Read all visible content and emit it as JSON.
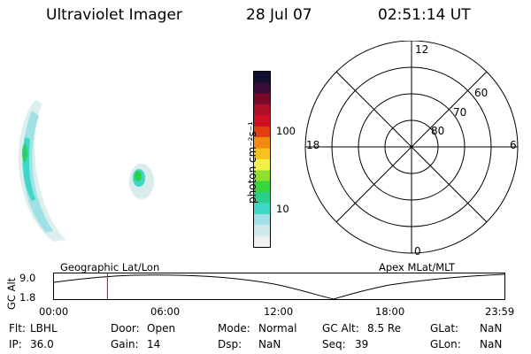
{
  "header": {
    "instrument": "Ultraviolet Imager",
    "date": "28 Jul 07",
    "time": "02:51:14 UT"
  },
  "colorbar": {
    "label": "photon cm⁻²s⁻¹",
    "ticks": [
      {
        "label": "100",
        "value": 100
      },
      {
        "label": "10",
        "value": 10
      }
    ],
    "colors": [
      "#f0f0f0",
      "#cfe8ec",
      "#9fe0e6",
      "#3fd8c8",
      "#2ccf8a",
      "#35d83a",
      "#8ee02a",
      "#f0f048",
      "#f8c020",
      "#f08a10",
      "#e04010",
      "#d01020",
      "#b0102a",
      "#7a0a2a",
      "#3a0a3a",
      "#101030"
    ]
  },
  "polar_grid": {
    "labels": [
      {
        "text": "12",
        "kind": "mlt"
      },
      {
        "text": "18",
        "kind": "mlt"
      },
      {
        "text": "6",
        "kind": "mlt"
      },
      {
        "text": "0",
        "kind": "mlt"
      },
      {
        "text": "60",
        "kind": "mlat"
      },
      {
        "text": "70",
        "kind": "mlat"
      },
      {
        "text": "80",
        "kind": "mlat"
      }
    ]
  },
  "timeline": {
    "left_title": "Geographic Lat/Lon",
    "right_title": "Apex MLat/MLT",
    "y_axis_label": "GC Alt",
    "y_ticks": [
      "9.0",
      "1.8"
    ],
    "x_ticks": [
      "00:00",
      "06:00",
      "12:00",
      "18:00",
      "23:59"
    ],
    "marker_time": "02:51",
    "marker_color": "#e02020"
  },
  "info": {
    "filter_label": "Flt:",
    "filter": "LBHL",
    "door_label": "Door:",
    "door": "Open",
    "mode_label": "Mode:",
    "mode": "Normal",
    "gcalt_label": "GC Alt:",
    "gcalt": "8.5 Re",
    "glat_label": "GLat:",
    "glat": "NaN",
    "ip_label": "IP:",
    "ip": "36.0",
    "gain_label": "Gain:",
    "gain": "14",
    "dsp_label": "Dsp:",
    "dsp": "NaN",
    "seq_label": "Seq:",
    "seq": "39",
    "glon_label": "GLon:",
    "glon": "NaN"
  }
}
